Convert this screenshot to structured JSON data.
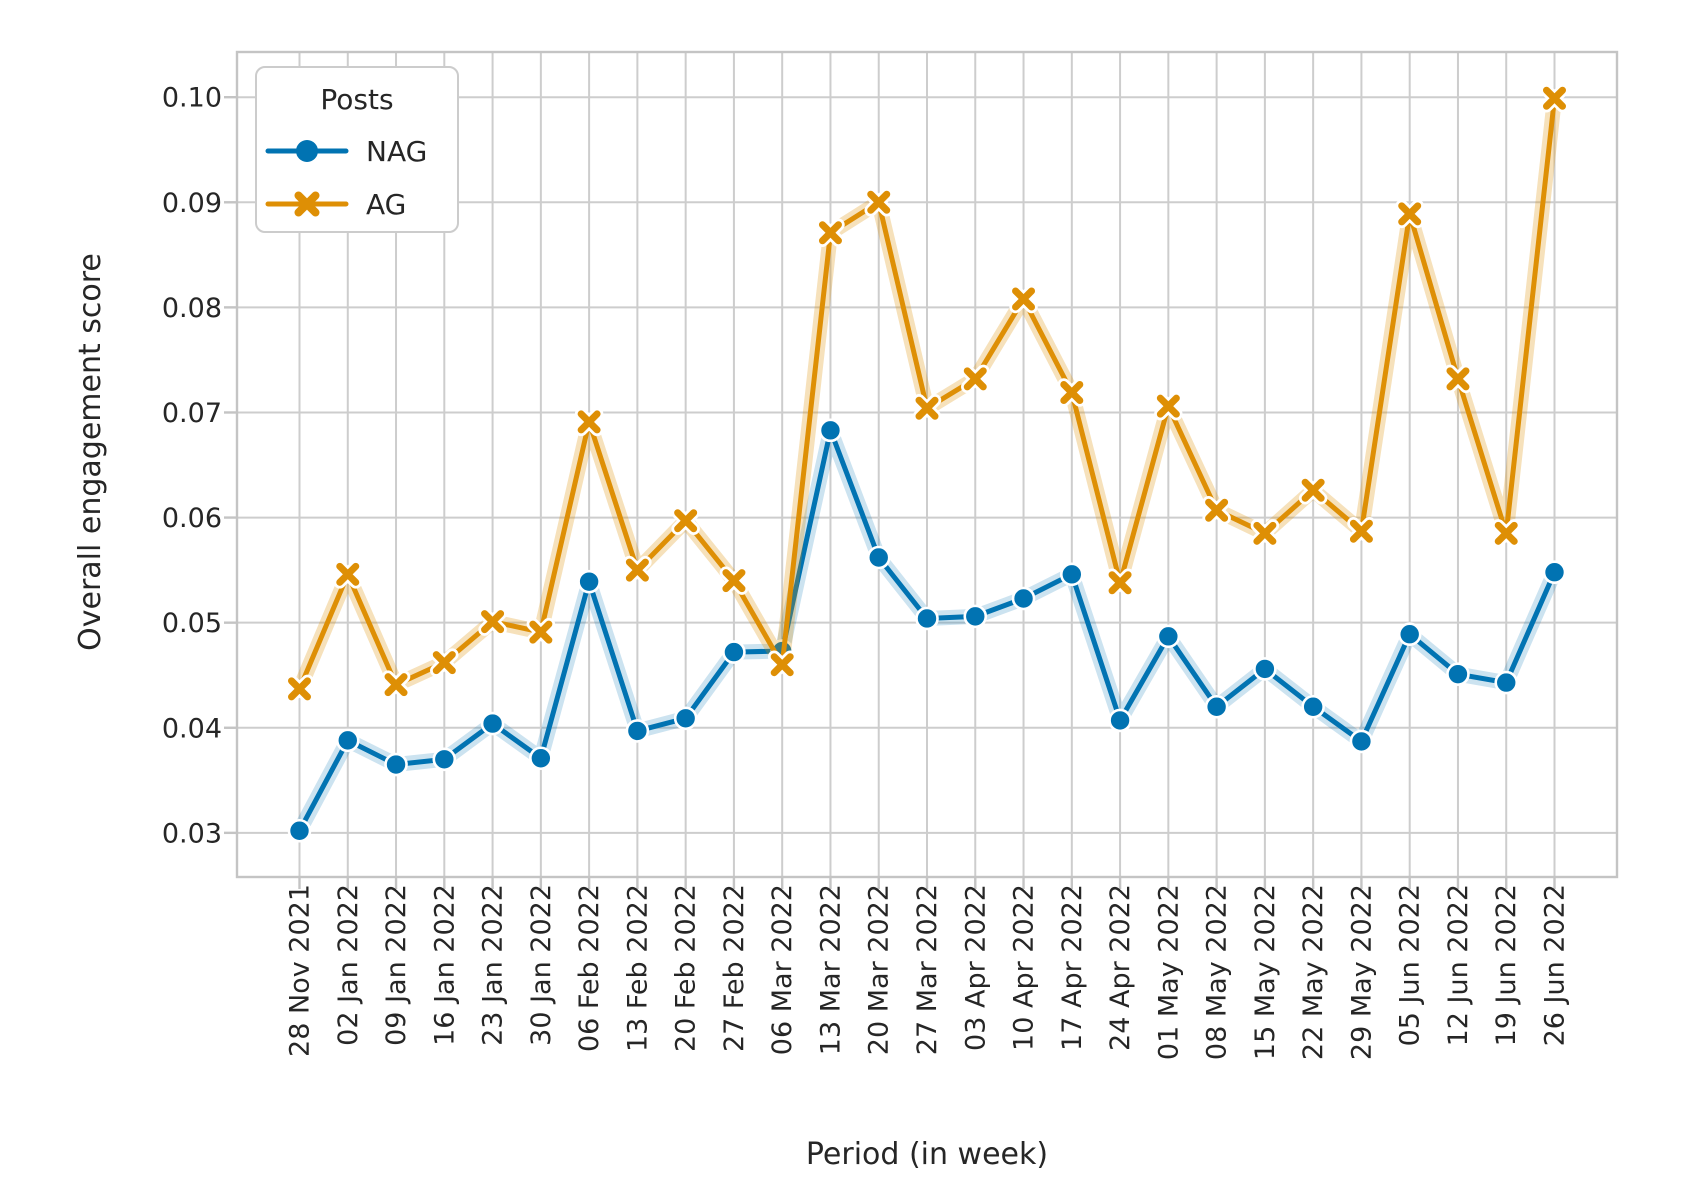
{
  "figure": {
    "background": "#ffffff",
    "text_color": "#262626",
    "grid_color": "#cdcdcd",
    "spine_color": "#c4c4c4"
  },
  "legend": {
    "title": "Posts",
    "entries": [
      {
        "label": "NAG",
        "color": "#0173b2",
        "marker": "circle"
      },
      {
        "label": "AG",
        "color": "#de8f05",
        "marker": "X"
      }
    ]
  },
  "chart_data": {
    "type": "line",
    "title": "",
    "xlabel": "Period (in week)",
    "ylabel": "Overall engagement score",
    "legend_title": "Posts",
    "legend_position": "upper left",
    "grid": true,
    "ylim": [
      0.0258,
      0.1043
    ],
    "yticks": [
      0.03,
      0.04,
      0.05,
      0.06,
      0.07,
      0.08,
      0.09,
      0.1
    ],
    "ytick_labels": [
      "0.03",
      "0.04",
      "0.05",
      "0.06",
      "0.07",
      "0.08",
      "0.09",
      "0.10"
    ],
    "categories": [
      "28 Nov 2021",
      "02 Jan 2022",
      "09 Jan 2022",
      "16 Jan 2022",
      "23 Jan 2022",
      "30 Jan 2022",
      "06 Feb 2022",
      "13 Feb 2022",
      "20 Feb 2022",
      "27 Feb 2022",
      "06 Mar 2022",
      "13 Mar 2022",
      "20 Mar 2022",
      "27 Mar 2022",
      "03 Apr 2022",
      "10 Apr 2022",
      "17 Apr 2022",
      "24 Apr 2022",
      "01 May 2022",
      "08 May 2022",
      "15 May 2022",
      "22 May 2022",
      "29 May 2022",
      "05 Jun 2022",
      "12 Jun 2022",
      "19 Jun 2022",
      "26 Jun 2022"
    ],
    "series": [
      {
        "name": "NAG",
        "color": "#0173b2",
        "marker": "circle",
        "values": [
          0.0302,
          0.0388,
          0.0365,
          0.037,
          0.0404,
          0.0371,
          0.0539,
          0.0397,
          0.0409,
          0.0472,
          0.0473,
          0.0683,
          0.0562,
          0.0504,
          0.0506,
          0.0523,
          0.0546,
          0.0407,
          0.0487,
          0.042,
          0.0456,
          0.042,
          0.0387,
          0.0489,
          0.0451,
          0.0443,
          0.0548
        ]
      },
      {
        "name": "AG",
        "color": "#de8f05",
        "marker": "X",
        "values": [
          0.0437,
          0.0546,
          0.0441,
          0.0462,
          0.0501,
          0.0491,
          0.0691,
          0.055,
          0.0597,
          0.054,
          0.046,
          0.0871,
          0.09,
          0.0704,
          0.0732,
          0.0808,
          0.0719,
          0.0538,
          0.0706,
          0.0607,
          0.0585,
          0.0626,
          0.0587,
          0.0889,
          0.0732,
          0.0585,
          0.0999
        ]
      }
    ]
  }
}
